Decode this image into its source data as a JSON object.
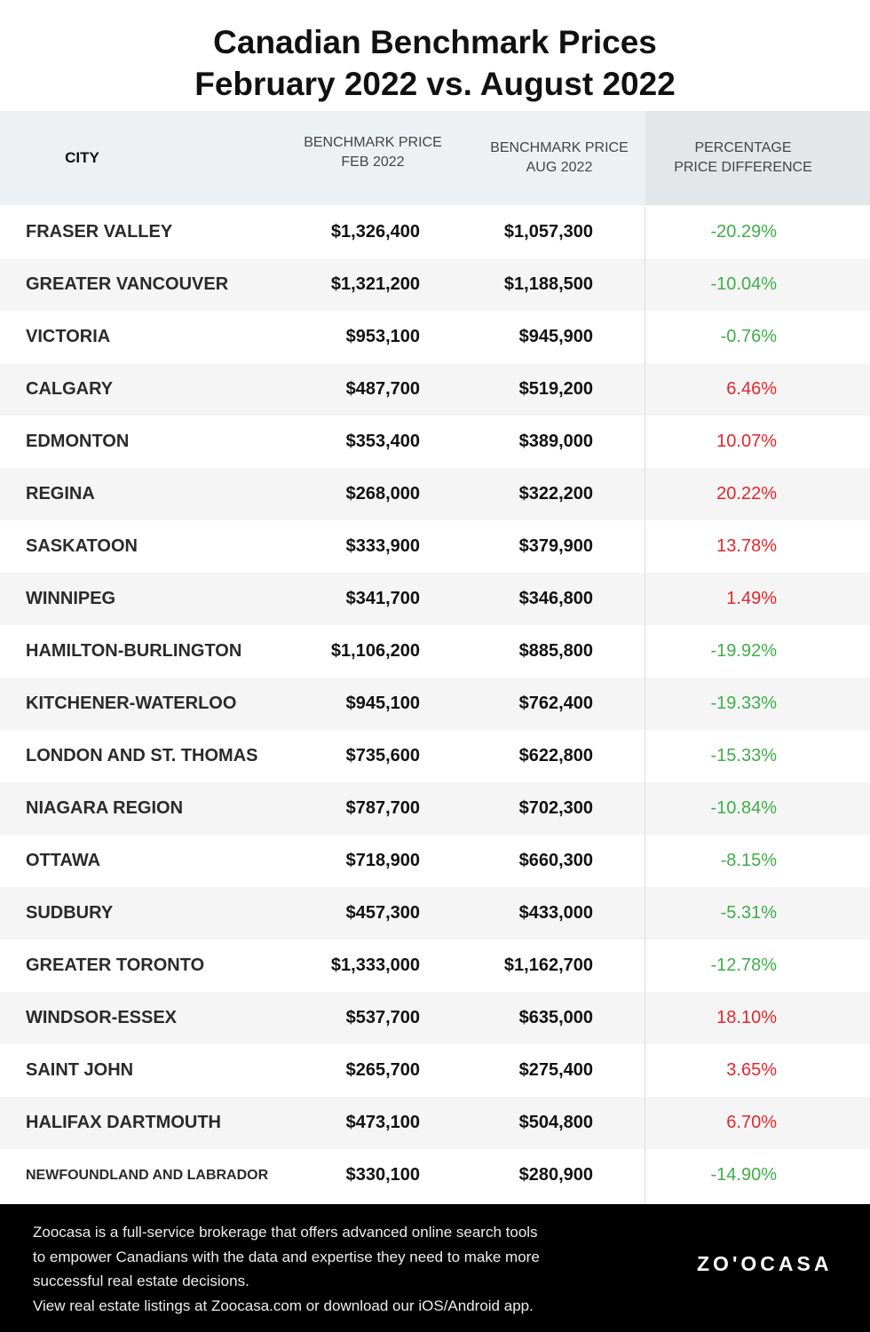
{
  "title_line1": "Canadian Benchmark Prices",
  "title_line2": "February 2022 vs. August 2022",
  "colors": {
    "negative": "#3fae49",
    "positive": "#e5262b",
    "header_bg": "#eef1f4",
    "footer_bg": "#000000"
  },
  "chart_data": {
    "type": "table",
    "columns": [
      "CITY",
      "BENCHMARK PRICE FEB 2022",
      "BENCHMARK PRICE AUG 2022",
      "PERCENTAGE PRICE DIFFERENCE"
    ],
    "header": {
      "city": "CITY",
      "feb_l1": "BENCHMARK PRICE",
      "feb_l2": "FEB 2022",
      "aug_l1": "BENCHMARK PRICE",
      "aug_l2": "AUG 2022",
      "pct_l1": "PERCENTAGE",
      "pct_l2": "PRICE DIFFERENCE"
    },
    "rows": [
      {
        "city": "FRASER VALLEY",
        "feb": "$1,326,400",
        "aug": "$1,057,300",
        "pct": "-20.29%"
      },
      {
        "city": "GREATER VANCOUVER",
        "feb": "$1,321,200",
        "aug": "$1,188,500",
        "pct": "-10.04%"
      },
      {
        "city": "VICTORIA",
        "feb": "$953,100",
        "aug": "$945,900",
        "pct": "-0.76%"
      },
      {
        "city": "CALGARY",
        "feb": "$487,700",
        "aug": "$519,200",
        "pct": "6.46%"
      },
      {
        "city": "EDMONTON",
        "feb": "$353,400",
        "aug": "$389,000",
        "pct": "10.07%"
      },
      {
        "city": "REGINA",
        "feb": "$268,000",
        "aug": "$322,200",
        "pct": "20.22%"
      },
      {
        "city": "SASKATOON",
        "feb": "$333,900",
        "aug": "$379,900",
        "pct": "13.78%"
      },
      {
        "city": "WINNIPEG",
        "feb": "$341,700",
        "aug": "$346,800",
        "pct": "1.49%"
      },
      {
        "city": "HAMILTON-BURLINGTON",
        "feb": "$1,106,200",
        "aug": "$885,800",
        "pct": "-19.92%"
      },
      {
        "city": "KITCHENER-WATERLOO",
        "feb": "$945,100",
        "aug": "$762,400",
        "pct": "-19.33%"
      },
      {
        "city": "LONDON AND ST. THOMAS",
        "feb": "$735,600",
        "aug": "$622,800",
        "pct": "-15.33%"
      },
      {
        "city": "NIAGARA REGION",
        "feb": "$787,700",
        "aug": "$702,300",
        "pct": "-10.84%"
      },
      {
        "city": "OTTAWA",
        "feb": "$718,900",
        "aug": "$660,300",
        "pct": "-8.15%"
      },
      {
        "city": "SUDBURY",
        "feb": "$457,300",
        "aug": "$433,000",
        "pct": "-5.31%"
      },
      {
        "city": "GREATER TORONTO",
        "feb": "$1,333,000",
        "aug": "$1,162,700",
        "pct": "-12.78%"
      },
      {
        "city": "WINDSOR-ESSEX",
        "feb": "$537,700",
        "aug": "$635,000",
        "pct": "18.10%"
      },
      {
        "city": "SAINT JOHN",
        "feb": "$265,700",
        "aug": "$275,400",
        "pct": "3.65%"
      },
      {
        "city": "HALIFAX DARTMOUTH",
        "feb": "$473,100",
        "aug": "$504,800",
        "pct": "6.70%"
      },
      {
        "city": "NEWFOUNDLAND AND LABRADOR",
        "feb": "$330,100",
        "aug": "$280,900",
        "pct": "-14.90%"
      }
    ]
  },
  "footer": {
    "line1": "Zoocasa is a full-service brokerage that offers advanced online search tools",
    "line2": "to empower Canadians with the data and expertise they need to make more",
    "line3": "successful real estate decisions.",
    "line4": "View real estate listings at Zoocasa.com or download our iOS/Android app.",
    "logo": "ZO'OCASA"
  }
}
